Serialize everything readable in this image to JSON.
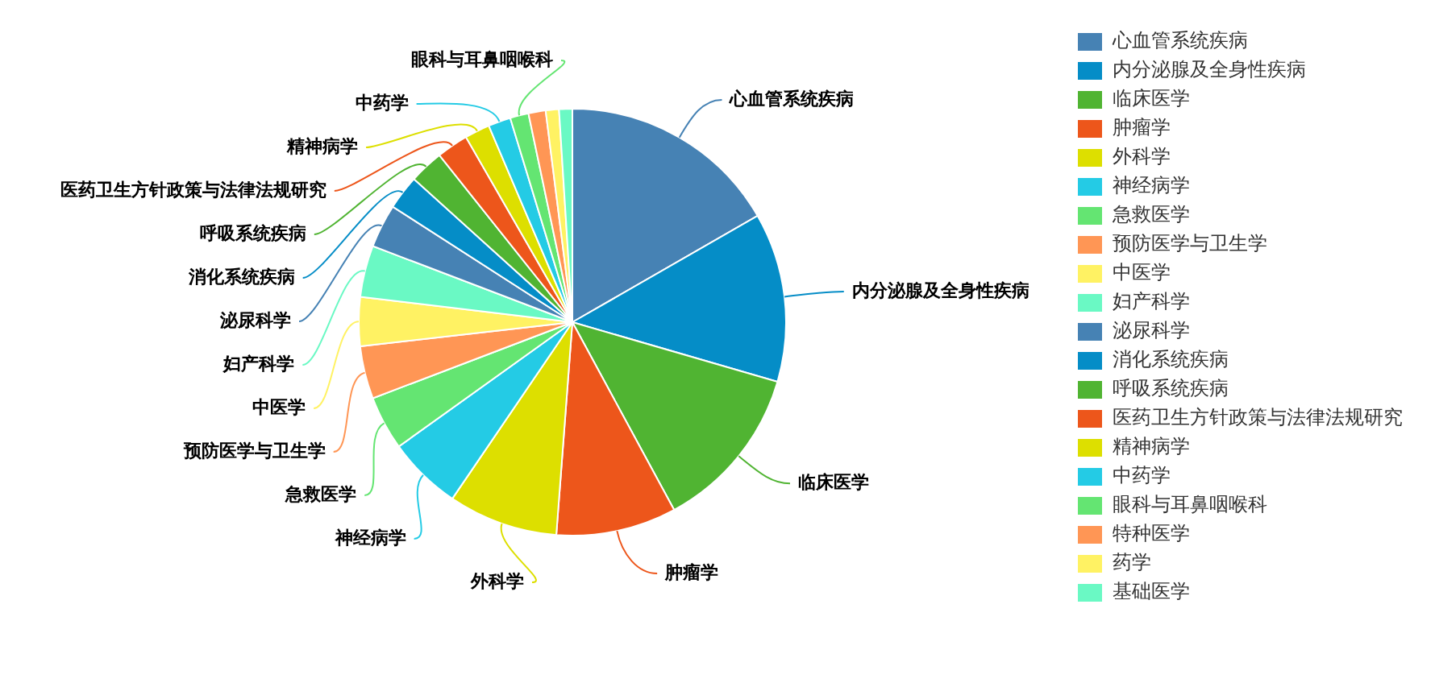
{
  "chart_data": {
    "type": "pie",
    "categories": [
      "心血管系统疾病",
      "内分泌腺及全身性疾病",
      "临床医学",
      "肿瘤学",
      "外科学",
      "神经病学",
      "急救医学",
      "预防医学与卫生学",
      "中医学",
      "妇产科学",
      "泌尿科学",
      "消化系统疾病",
      "呼吸系统疾病",
      "医药卫生方针政策与法律法规研究",
      "精神病学",
      "中药学",
      "眼科与耳鼻咽喉科",
      "特种医学",
      "药学",
      "基础医学"
    ],
    "values": [
      16.7,
      12.8,
      12.6,
      9.1,
      8.3,
      5.6,
      4.1,
      4.0,
      3.7,
      3.9,
      3.3,
      2.6,
      2.6,
      2.4,
      1.9,
      1.7,
      1.4,
      1.3,
      1.0,
      1.0
    ],
    "colors": [
      "#4682b4",
      "#058dc7",
      "#50b432",
      "#ed561b",
      "#dddf00",
      "#24cbe5",
      "#64e572",
      "#ff9655",
      "#fff263",
      "#6af9c4",
      "#4682b4",
      "#058dc7",
      "#50b432",
      "#ed561b",
      "#dddf00",
      "#24cbe5",
      "#64e572",
      "#ff9655",
      "#fff263",
      "#6af9c4"
    ],
    "legend": "right"
  }
}
